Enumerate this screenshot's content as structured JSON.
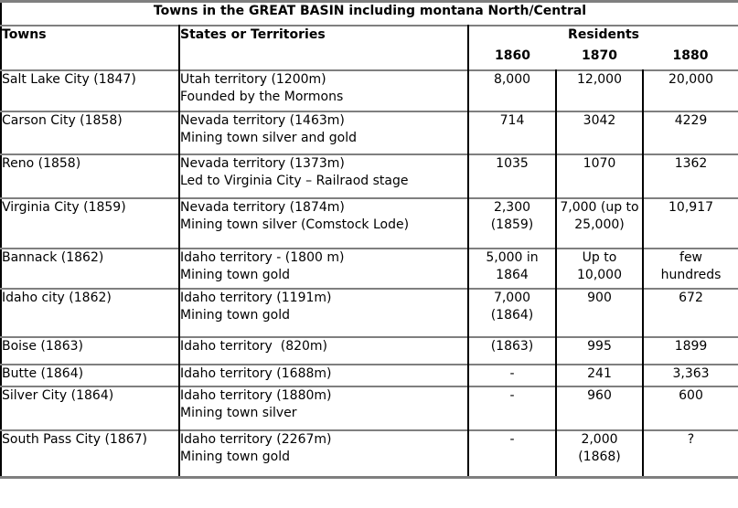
{
  "title": "Towns in the GREAT BASIN including montana North/Central",
  "columns": {
    "towns": "Towns",
    "states": "States or Territories",
    "residents": "Residents",
    "year_1860": "1860",
    "year_1870": "1870",
    "year_1880": "1880"
  },
  "rows": [
    {
      "town": "Salt Lake City (1847)",
      "territory": "Utah territory (1200m)\nFounded by the Mormons",
      "r1860": "8,000",
      "r1870": "12,000",
      "r1880": "20,000"
    },
    {
      "town": "Carson City (1858)",
      "territory": "Nevada territory (1463m)\nMining town silver and gold",
      "r1860": "714",
      "r1870": "3042",
      "r1880": "4229"
    },
    {
      "town": "Reno (1858)",
      "territory": "Nevada territory (1373m)\nLed to Virginia City – Railraod stage",
      "r1860": "1035",
      "r1870": "1070",
      "r1880": "1362"
    },
    {
      "town": "Virginia City (1859)",
      "territory": "Nevada territory (1874m)\nMining town silver (Comstock Lode)",
      "r1860": "2,300\n(1859)",
      "r1870": "7,000 (up to\n25,000)",
      "r1880": "10,917"
    },
    {
      "town": "Bannack (1862)",
      "territory": "Idaho territory - (1800 m)\nMining town gold",
      "r1860": "5,000 in\n1864",
      "r1870": "Up to\n10,000",
      "r1880": "few\nhundreds"
    },
    {
      "town": "Idaho city (1862)",
      "territory": "Idaho territory (1191m)\nMining town gold",
      "r1860": "7,000\n(1864)",
      "r1870": "900",
      "r1880": "672"
    },
    {
      "town": "Boise (1863)",
      "territory": "Idaho territory  (820m)",
      "r1860": "(1863)",
      "r1870": "995",
      "r1880": "1899"
    },
    {
      "town": "Butte (1864)",
      "territory": "Idaho territory (1688m)",
      "r1860": "-",
      "r1870": "241",
      "r1880": "3,363"
    },
    {
      "town": "Silver City (1864)",
      "territory": "Idaho territory (1880m)\nMining town silver",
      "r1860": "-",
      "r1870": "960",
      "r1880": "600"
    },
    {
      "town": "South Pass City (1867)",
      "territory": "Idaho territory (2267m)\nMining town gold",
      "r1860": "-",
      "r1870": "2,000\n(1868)",
      "r1880": "?"
    }
  ],
  "colors": {
    "text": "#000000",
    "background": "#ffffff",
    "horizontal_border": "#7f7f7f",
    "vertical_border": "#000000"
  }
}
